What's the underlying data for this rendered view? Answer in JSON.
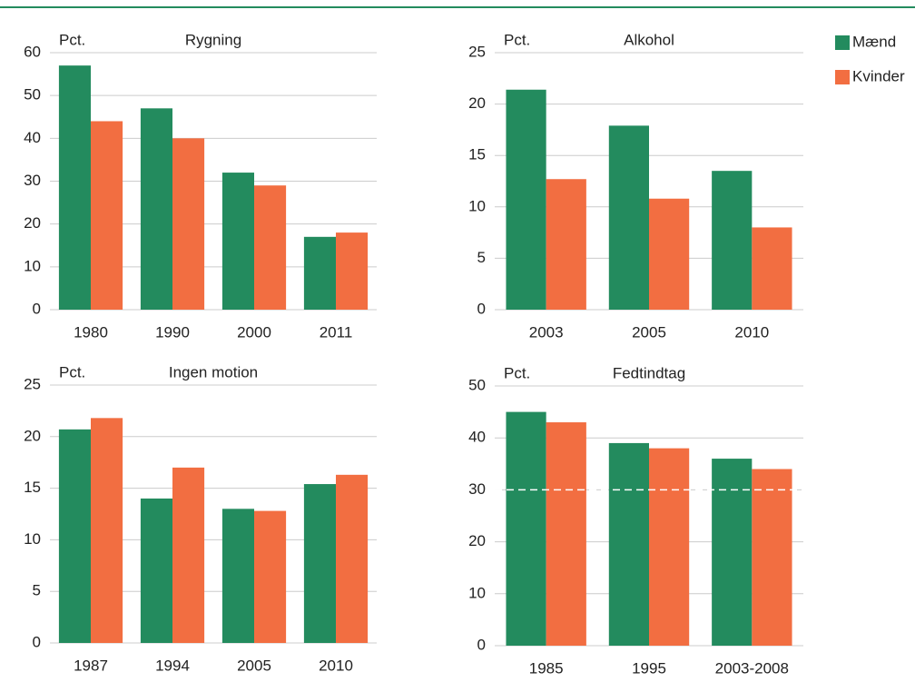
{
  "chart_data": [
    {
      "type": "bar",
      "title": "Rygning",
      "ylabel": "Pct.",
      "categories": [
        "1980",
        "1990",
        "2000",
        "2011"
      ],
      "series": [
        {
          "name": "Mænd",
          "color": "#238b5e",
          "values": [
            57,
            47,
            32,
            17
          ]
        },
        {
          "name": "Kvinder",
          "color": "#f26e41",
          "values": [
            44,
            40,
            29,
            18
          ]
        }
      ],
      "ylim": [
        0,
        60
      ],
      "yticks": [
        0,
        10,
        20,
        30,
        40,
        50,
        60
      ],
      "grid": true,
      "legend": "top-right"
    },
    {
      "type": "bar",
      "title": "Alkohol",
      "ylabel": "Pct.",
      "categories": [
        "2003",
        "2005",
        "2010"
      ],
      "series": [
        {
          "color": "#238b5e",
          "values": [
            21.4,
            17.9,
            13.5
          ]
        },
        {
          "color": "#f26e41",
          "values": [
            12.7,
            10.8,
            8
          ]
        }
      ],
      "ylim": [
        0,
        25
      ],
      "yticks": [
        0,
        5,
        10,
        15,
        20,
        25
      ],
      "grid": true
    },
    {
      "type": "bar",
      "title": "Ingen motion",
      "ylabel": "Pct.",
      "categories": [
        "1987",
        "1994",
        "2005",
        "2010"
      ],
      "series": [
        {
          "color": "#238b5e",
          "values": [
            20.7,
            14,
            13,
            15.4
          ]
        },
        {
          "color": "#f26e41",
          "values": [
            21.8,
            17,
            12.8,
            16.3
          ]
        }
      ],
      "ylim": [
        0,
        25
      ],
      "yticks": [
        0,
        5,
        10,
        15,
        20,
        25
      ],
      "grid": true
    },
    {
      "type": "bar",
      "title": "Fedtindtag",
      "ylabel": "Pct.",
      "categories": [
        "1985",
        "1995",
        "2003-2008"
      ],
      "series": [
        {
          "color": "#238b5e",
          "values": [
            45,
            39,
            36
          ]
        },
        {
          "color": "#f26e41",
          "values": [
            43,
            38,
            34
          ]
        }
      ],
      "ylim": [
        0,
        50
      ],
      "yticks": [
        0,
        10,
        20,
        30,
        40,
        50
      ],
      "grid": true,
      "hline": 30
    }
  ]
}
